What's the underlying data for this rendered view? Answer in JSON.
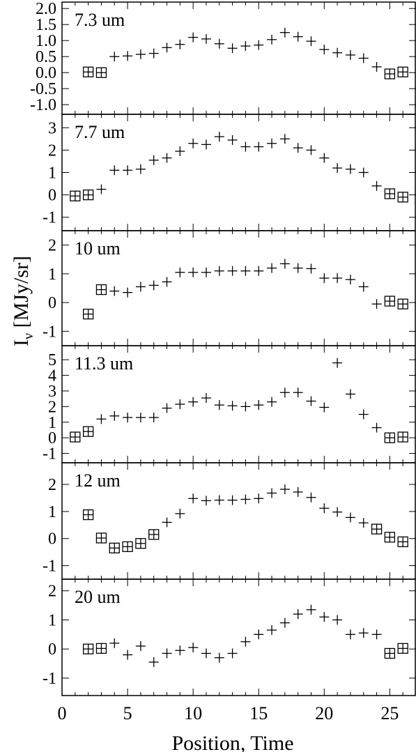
{
  "figure": {
    "ylabel_main": "I",
    "ylabel_sub": "ν",
    "ylabel_unit": " [MJy/sr]",
    "xlabel": "Position, Time"
  },
  "chart_data": [
    {
      "type": "scatter",
      "panel_label": "7.3 um",
      "ylim": [
        -1.3,
        2.2
      ],
      "yticks": [
        -1.0,
        -0.5,
        0.0,
        0.5,
        1.0,
        1.5,
        2.0
      ],
      "ytick_labels": [
        "-1.0",
        "-0.5",
        "0.0",
        "0.5",
        "1.0",
        "1.5",
        "2.0"
      ],
      "xlim": [
        0,
        27
      ],
      "series": [
        {
          "marker": "plus",
          "x": [
            4,
            5,
            6,
            7,
            8,
            9,
            10,
            11,
            12,
            13,
            14,
            15,
            16,
            17,
            18,
            19,
            20,
            21,
            22,
            23,
            24
          ],
          "y": [
            0.5,
            0.52,
            0.57,
            0.6,
            0.78,
            0.88,
            1.1,
            1.05,
            0.9,
            0.76,
            0.83,
            0.86,
            1.03,
            1.25,
            1.12,
            0.98,
            0.72,
            0.62,
            0.55,
            0.45,
            0.18
          ]
        },
        {
          "marker": "boxed-plus",
          "x": [
            2,
            3,
            25,
            26
          ],
          "y": [
            0.02,
            0.0,
            -0.04,
            0.02
          ]
        }
      ]
    },
    {
      "type": "scatter",
      "panel_label": "7.7 um",
      "ylim": [
        -1.6,
        3.6
      ],
      "yticks": [
        -1,
        0,
        1,
        2,
        3
      ],
      "ytick_labels": [
        "-1",
        "0",
        "1",
        "2",
        "3"
      ],
      "xlim": [
        0,
        27
      ],
      "series": [
        {
          "marker": "plus",
          "x": [
            3,
            4,
            5,
            6,
            7,
            8,
            9,
            10,
            11,
            12,
            13,
            14,
            15,
            16,
            17,
            18,
            19,
            20,
            21,
            22,
            23,
            24
          ],
          "y": [
            0.25,
            1.1,
            1.1,
            1.15,
            1.55,
            1.65,
            1.95,
            2.3,
            2.25,
            2.6,
            2.45,
            2.15,
            2.15,
            2.3,
            2.5,
            2.1,
            2.0,
            1.65,
            1.2,
            1.15,
            1.0,
            0.4
          ]
        },
        {
          "marker": "boxed-plus",
          "x": [
            1,
            2,
            25,
            26
          ],
          "y": [
            -0.05,
            0.0,
            0.05,
            -0.1
          ]
        }
      ]
    },
    {
      "type": "scatter",
      "panel_label": "10 um",
      "ylim": [
        -1.5,
        2.5
      ],
      "yticks": [
        -1,
        0,
        1,
        2
      ],
      "ytick_labels": [
        "-1",
        "0",
        "1",
        "2"
      ],
      "xlim": [
        0,
        27
      ],
      "series": [
        {
          "marker": "plus",
          "x": [
            4,
            5,
            6,
            7,
            8,
            9,
            10,
            11,
            12,
            13,
            14,
            15,
            16,
            17,
            18,
            19,
            20,
            21,
            22,
            23,
            24
          ],
          "y": [
            0.4,
            0.35,
            0.55,
            0.6,
            0.72,
            1.05,
            1.05,
            1.05,
            1.1,
            1.1,
            1.1,
            1.1,
            1.2,
            1.35,
            1.2,
            1.18,
            0.85,
            0.85,
            0.8,
            0.55,
            -0.05
          ]
        },
        {
          "marker": "boxed-plus",
          "x": [
            2,
            3,
            25,
            26
          ],
          "y": [
            -0.4,
            0.45,
            0.05,
            -0.05
          ]
        }
      ]
    },
    {
      "type": "scatter",
      "panel_label": "11.3 um",
      "ylim": [
        -1.6,
        5.9
      ],
      "yticks": [
        -1,
        0,
        1,
        2,
        3,
        4,
        5
      ],
      "ytick_labels": [
        "-1",
        "0",
        "1",
        "2",
        "3",
        "4",
        "5"
      ],
      "xlim": [
        0,
        27
      ],
      "series": [
        {
          "marker": "plus",
          "x": [
            3,
            4,
            5,
            6,
            7,
            8,
            9,
            10,
            11,
            12,
            13,
            14,
            15,
            16,
            17,
            18,
            19,
            20,
            21,
            22,
            23,
            24
          ],
          "y": [
            1.2,
            1.4,
            1.3,
            1.3,
            1.3,
            1.9,
            2.15,
            2.3,
            2.55,
            2.1,
            2.05,
            2.0,
            2.1,
            2.3,
            2.9,
            2.9,
            2.35,
            1.95,
            4.8,
            2.8,
            1.5,
            0.65
          ]
        },
        {
          "marker": "boxed-plus",
          "x": [
            1,
            2,
            25,
            26
          ],
          "y": [
            0.05,
            0.4,
            0.0,
            0.05
          ]
        }
      ]
    },
    {
      "type": "scatter",
      "panel_label": "12 um",
      "ylim": [
        -1.5,
        2.8
      ],
      "yticks": [
        -1,
        0,
        1,
        2
      ],
      "ytick_labels": [
        "-1",
        "0",
        "1",
        "2"
      ],
      "xlim": [
        0,
        27
      ],
      "series": [
        {
          "marker": "plus",
          "x": [
            8,
            9,
            10,
            11,
            12,
            13,
            14,
            15,
            16,
            17,
            18,
            19,
            20,
            21,
            22,
            23
          ],
          "y": [
            0.6,
            0.92,
            1.48,
            1.4,
            1.42,
            1.42,
            1.45,
            1.48,
            1.68,
            1.82,
            1.72,
            1.52,
            1.12,
            0.98,
            0.78,
            0.58
          ]
        },
        {
          "marker": "boxed-plus",
          "x": [
            2,
            3,
            4,
            5,
            6,
            7,
            24,
            25,
            26
          ],
          "y": [
            0.88,
            0.02,
            -0.35,
            -0.3,
            -0.18,
            0.15,
            0.35,
            0.05,
            -0.12
          ]
        }
      ]
    },
    {
      "type": "scatter",
      "panel_label": "20 um",
      "ylim": [
        -1.6,
        2.4
      ],
      "yticks": [
        -1,
        0,
        1,
        2
      ],
      "ytick_labels": [
        "-1",
        "0",
        "1",
        "2"
      ],
      "xlim": [
        0,
        27
      ],
      "xticks": [
        0,
        5,
        10,
        15,
        20,
        25
      ],
      "xtick_labels": [
        "0",
        "5",
        "10",
        "15",
        "20",
        "25"
      ],
      "series": [
        {
          "marker": "plus",
          "x": [
            4,
            5,
            6,
            7,
            8,
            9,
            10,
            11,
            12,
            13,
            14,
            15,
            16,
            17,
            18,
            19,
            20,
            21,
            22,
            23,
            24
          ],
          "y": [
            0.2,
            -0.2,
            0.1,
            -0.45,
            -0.15,
            -0.05,
            0.05,
            -0.15,
            -0.3,
            -0.15,
            0.25,
            0.5,
            0.65,
            0.9,
            1.2,
            1.35,
            1.1,
            1.0,
            0.5,
            0.55,
            0.5
          ]
        },
        {
          "marker": "boxed-plus",
          "x": [
            2,
            3,
            25,
            26
          ],
          "y": [
            0.0,
            0.02,
            -0.15,
            0.02
          ]
        }
      ]
    }
  ]
}
